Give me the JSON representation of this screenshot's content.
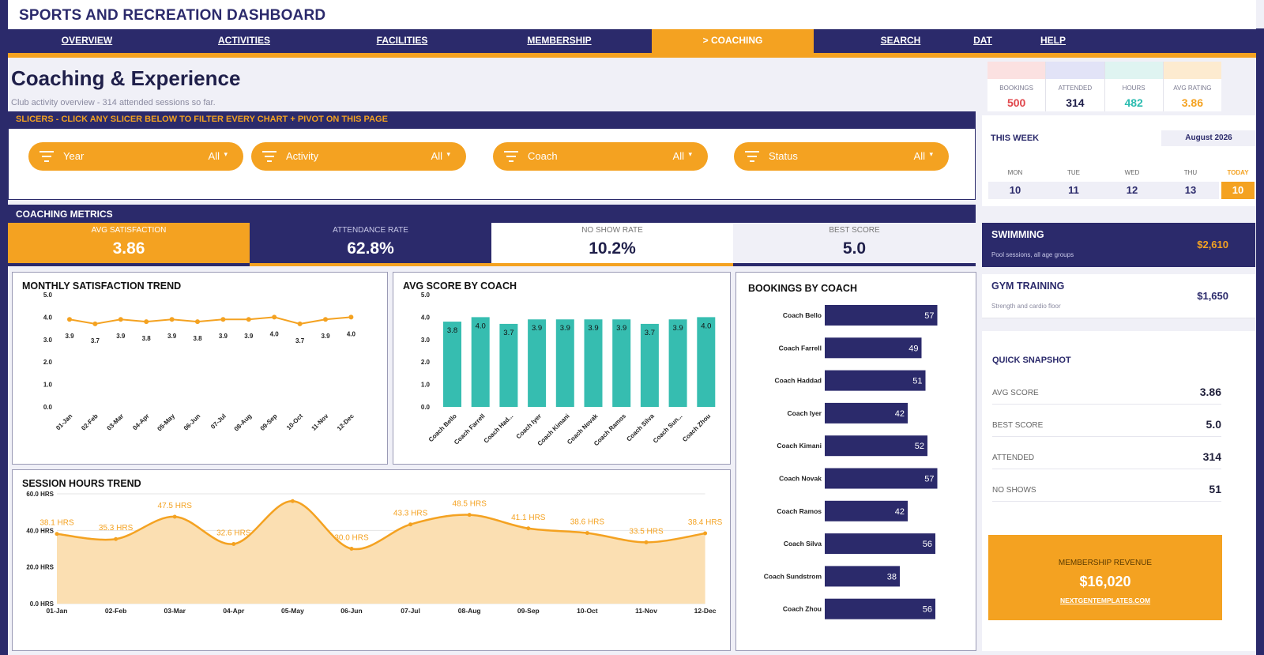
{
  "app": {
    "title": "SPORTS AND RECREATION DASHBOARD"
  },
  "nav": [
    {
      "label": "OVERVIEW"
    },
    {
      "label": "ACTIVITIES"
    },
    {
      "label": "FACILITIES"
    },
    {
      "label": "MEMBERSHIP"
    },
    {
      "label": "> COACHING",
      "active": true
    },
    {
      "label": "SEARCH"
    },
    {
      "label": "DAT"
    },
    {
      "label": "HELP"
    }
  ],
  "page": {
    "title": "Coaching & Experience",
    "subtitle": "Club activity overview  -  314 attended sessions so far."
  },
  "kpis": [
    {
      "label": "BOOKINGS",
      "value": "500",
      "color": "#e0464b",
      "band": "#fbe1e1"
    },
    {
      "label": "ATTENDED",
      "value": "314",
      "color": "#1f1f4a",
      "band": "#e2e3f7"
    },
    {
      "label": "HOURS",
      "value": "482",
      "color": "#2bbcb0",
      "band": "#dff4f1"
    },
    {
      "label": "AVG RATING",
      "value": "3.86",
      "color": "#f4a221",
      "band": "#fdebd0"
    }
  ],
  "slicers": {
    "header": "SLICERS  -  CLICK ANY SLICER BELOW TO FILTER EVERY CHART + PIVOT ON THIS PAGE",
    "items": [
      {
        "name": "Year",
        "value": "All"
      },
      {
        "name": "Activity",
        "value": "All"
      },
      {
        "name": "Coach",
        "value": "All"
      },
      {
        "name": "Status",
        "value": "All"
      }
    ]
  },
  "metrics": {
    "header": "COACHING METRICS",
    "cards": [
      {
        "label": "AVG SATISFACTION",
        "value": "3.86"
      },
      {
        "label": "ATTENDANCE RATE",
        "value": "62.8%"
      },
      {
        "label": "NO SHOW RATE",
        "value": "10.2%"
      },
      {
        "label": "BEST SCORE",
        "value": "5.0"
      }
    ]
  },
  "week": {
    "title": "THIS WEEK",
    "month": "August 2026",
    "days": [
      {
        "label": "MON",
        "num": "10"
      },
      {
        "label": "TUE",
        "num": "11"
      },
      {
        "label": "WED",
        "num": "12"
      },
      {
        "label": "THU",
        "num": "13"
      },
      {
        "label": "TODAY",
        "num": "10"
      }
    ]
  },
  "revenue_cards": [
    {
      "title": "SWIMMING",
      "sub": "Pool sessions, all age groups",
      "value": "$2,610"
    },
    {
      "title": "GYM TRAINING",
      "sub": "Strength and cardio floor",
      "value": "$1,650"
    }
  ],
  "snapshot": {
    "title": "QUICK SNAPSHOT",
    "rows": [
      {
        "label": "AVG SCORE",
        "value": "3.86"
      },
      {
        "label": "BEST SCORE",
        "value": "5.0"
      },
      {
        "label": "ATTENDED",
        "value": "314"
      },
      {
        "label": "NO SHOWS",
        "value": "51"
      }
    ]
  },
  "membership": {
    "label": "MEMBERSHIP REVENUE",
    "value": "$16,020",
    "link": "NEXTGENTEMPLATES.COM"
  },
  "colors": {
    "navy": "#2b2a6b",
    "orange": "#f4a221",
    "teal": "#36bdb0"
  },
  "chart_data": [
    {
      "type": "line",
      "title": "MONTHLY SATISFACTION TREND",
      "categories": [
        "01-Jan",
        "02-Feb",
        "03-Mar",
        "04-Apr",
        "05-May",
        "06-Jun",
        "07-Jul",
        "08-Aug",
        "09-Sep",
        "10-Oct",
        "11-Nov",
        "12-Dec"
      ],
      "values": [
        3.9,
        3.7,
        3.9,
        3.8,
        3.9,
        3.8,
        3.9,
        3.9,
        4.0,
        3.7,
        3.9,
        4.0
      ],
      "labels": [
        "3.9",
        "3.7",
        "3.9",
        "3.8",
        "3.9",
        "3.8",
        "3.9",
        "3.9",
        "4.0",
        "3.7",
        "3.9",
        "4.0"
      ],
      "yticks": [
        "0.0",
        "1.0",
        "2.0",
        "3.0",
        "4.0",
        "5.0"
      ],
      "ylim": [
        0,
        5
      ]
    },
    {
      "type": "bar",
      "title": "AVG SCORE BY COACH",
      "categories": [
        "Coach Bello",
        "Coach Farrell",
        "Coach Had...",
        "Coach Iyer",
        "Coach Kimani",
        "Coach Novak",
        "Coach Ramos",
        "Coach Silva",
        "Coach Sun...",
        "Coach Zhou"
      ],
      "values": [
        3.8,
        4.0,
        3.7,
        3.9,
        3.9,
        3.9,
        3.9,
        3.7,
        3.9,
        4.0
      ],
      "labels": [
        "3.8",
        "4.0",
        "3.7",
        "3.9",
        "3.9",
        "3.9",
        "3.9",
        "3.7",
        "3.9",
        "4.0"
      ],
      "yticks": [
        "0.0",
        "1.0",
        "2.0",
        "3.0",
        "4.0",
        "5.0"
      ],
      "ylim": [
        0,
        5
      ]
    },
    {
      "type": "bar",
      "orientation": "horizontal",
      "title": "BOOKINGS BY COACH",
      "categories": [
        "Coach Bello",
        "Coach Farrell",
        "Coach Haddad",
        "Coach Iyer",
        "Coach Kimani",
        "Coach Novak",
        "Coach Ramos",
        "Coach Silva",
        "Coach Sundstrom",
        "Coach Zhou"
      ],
      "values": [
        57,
        49,
        51,
        42,
        52,
        57,
        42,
        56,
        38,
        56
      ]
    },
    {
      "type": "area",
      "title": "SESSION HOURS TREND",
      "categories": [
        "01-Jan",
        "02-Feb",
        "03-Mar",
        "04-Apr",
        "05-May",
        "06-Jun",
        "07-Jul",
        "08-Aug",
        "09-Sep",
        "10-Oct",
        "11-Nov",
        "12-Dec"
      ],
      "values": [
        38.1,
        35.3,
        47.5,
        32.6,
        56.0,
        30.0,
        43.3,
        48.5,
        41.1,
        38.6,
        33.5,
        38.4
      ],
      "labels": [
        "38.1 HRS",
        "35.3 HRS",
        "47.5 HRS",
        "32.6 HRS",
        "",
        "30.0 HRS",
        "43.3 HRS",
        "48.5 HRS",
        "41.1 HRS",
        "38.6 HRS",
        "33.5 HRS",
        "38.4 HRS"
      ],
      "yticks": [
        "0.0 HRS",
        "20.0 HRS",
        "40.0 HRS",
        "60.0 HRS"
      ],
      "ylim": [
        0,
        60
      ]
    }
  ]
}
